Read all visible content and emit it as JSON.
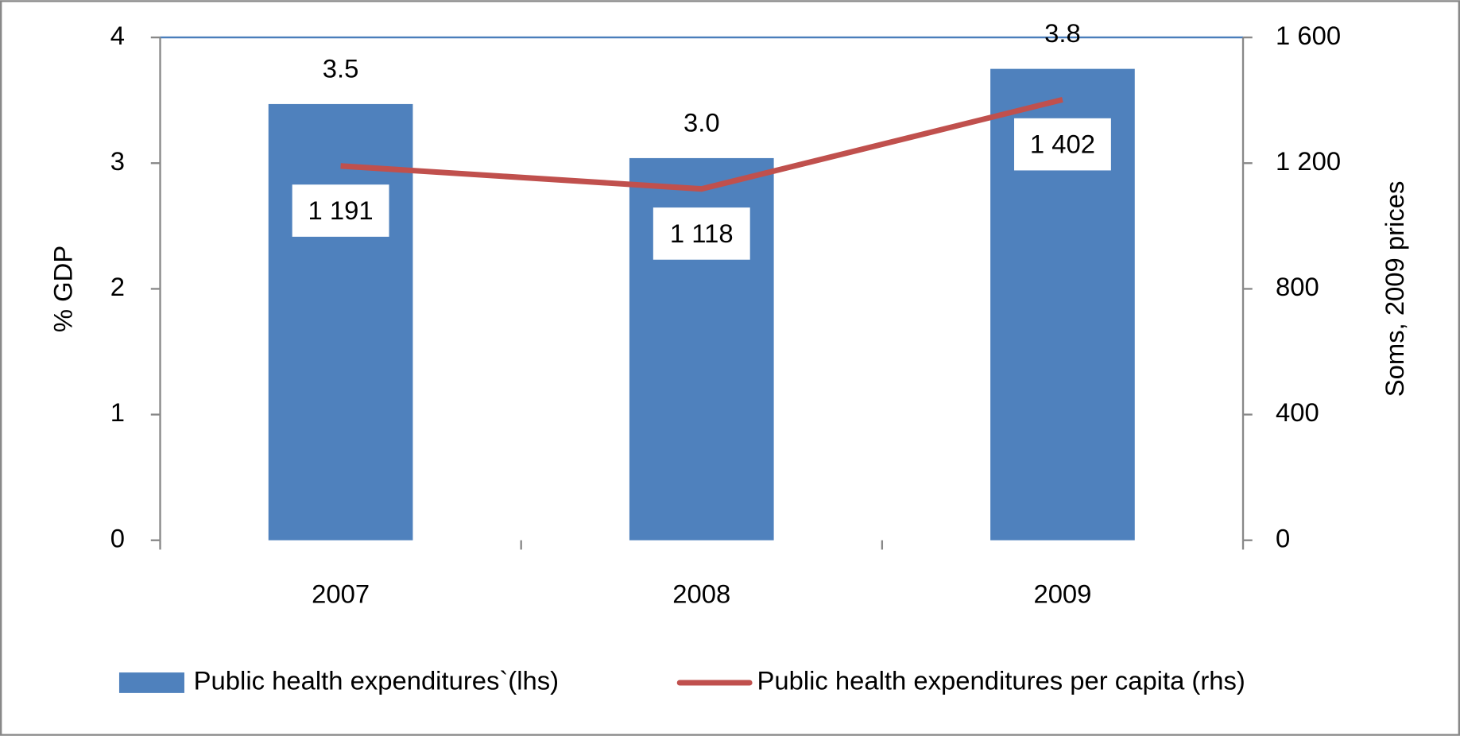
{
  "chart_data": {
    "type": "bar",
    "categories": [
      "2007",
      "2008",
      "2009"
    ],
    "series": [
      {
        "name": "Public health expenditures`(lhs)",
        "type": "bar",
        "color": "#4f81bd",
        "values": [
          3.47,
          3.04,
          3.75
        ],
        "value_labels": [
          "3.5",
          "3.0",
          "3.8"
        ],
        "label_color": "#1f78c8"
      },
      {
        "name": "Public health expenditures per capita (rhs)",
        "type": "line",
        "axis": "y2",
        "color": "#c0504d",
        "values": [
          1191,
          1118,
          1402
        ],
        "value_labels": [
          "1 191",
          "1 118",
          "1 402"
        ],
        "label_color": "#c00000"
      }
    ],
    "y_label": "% GDP",
    "y2_label": "Soms, 2009 prices",
    "ylim": [
      0,
      4
    ],
    "yticks": [
      0,
      1,
      2,
      3,
      4
    ],
    "y2lim": [
      0,
      1600
    ],
    "y2ticks": [
      0,
      400,
      800,
      {
        "value": 1200,
        "label": "1 200"
      },
      {
        "value": 1600,
        "label": "1 600"
      }
    ],
    "legend": "bottom"
  }
}
